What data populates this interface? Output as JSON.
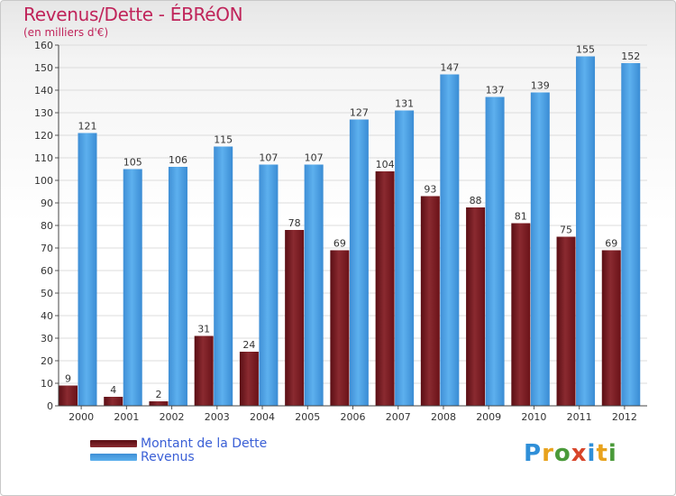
{
  "header": {
    "title": "Revenus/Dette - ÉBRéON",
    "subtitle": "(en milliers d'€)"
  },
  "chart_data": {
    "type": "bar",
    "title": "Revenus/Dette - ÉBRéON",
    "ylabel": "(en milliers d'€)",
    "xlabel": "",
    "ylim": [
      0,
      160
    ],
    "ytick_step": 10,
    "grid": true,
    "categories": [
      "2000",
      "2001",
      "2002",
      "2003",
      "2004",
      "2005",
      "2006",
      "2007",
      "2008",
      "2009",
      "2010",
      "2011",
      "2012"
    ],
    "series": [
      {
        "name": "Montant de la Dette",
        "color": "#7a1a22",
        "values": [
          9,
          4,
          2,
          31,
          24,
          78,
          69,
          104,
          93,
          88,
          81,
          75,
          69
        ]
      },
      {
        "name": "Revenus",
        "color": "#4a9ee2",
        "values": [
          121,
          105,
          106,
          115,
          107,
          107,
          127,
          131,
          147,
          137,
          139,
          155,
          152
        ]
      }
    ],
    "legend_position": "bottom-left"
  },
  "legend": {
    "debt_label": "Montant de la Dette",
    "revenue_label": "Revenus"
  },
  "logo": {
    "letters": [
      "P",
      "r",
      "o",
      "x",
      "i",
      "t",
      "i"
    ]
  }
}
